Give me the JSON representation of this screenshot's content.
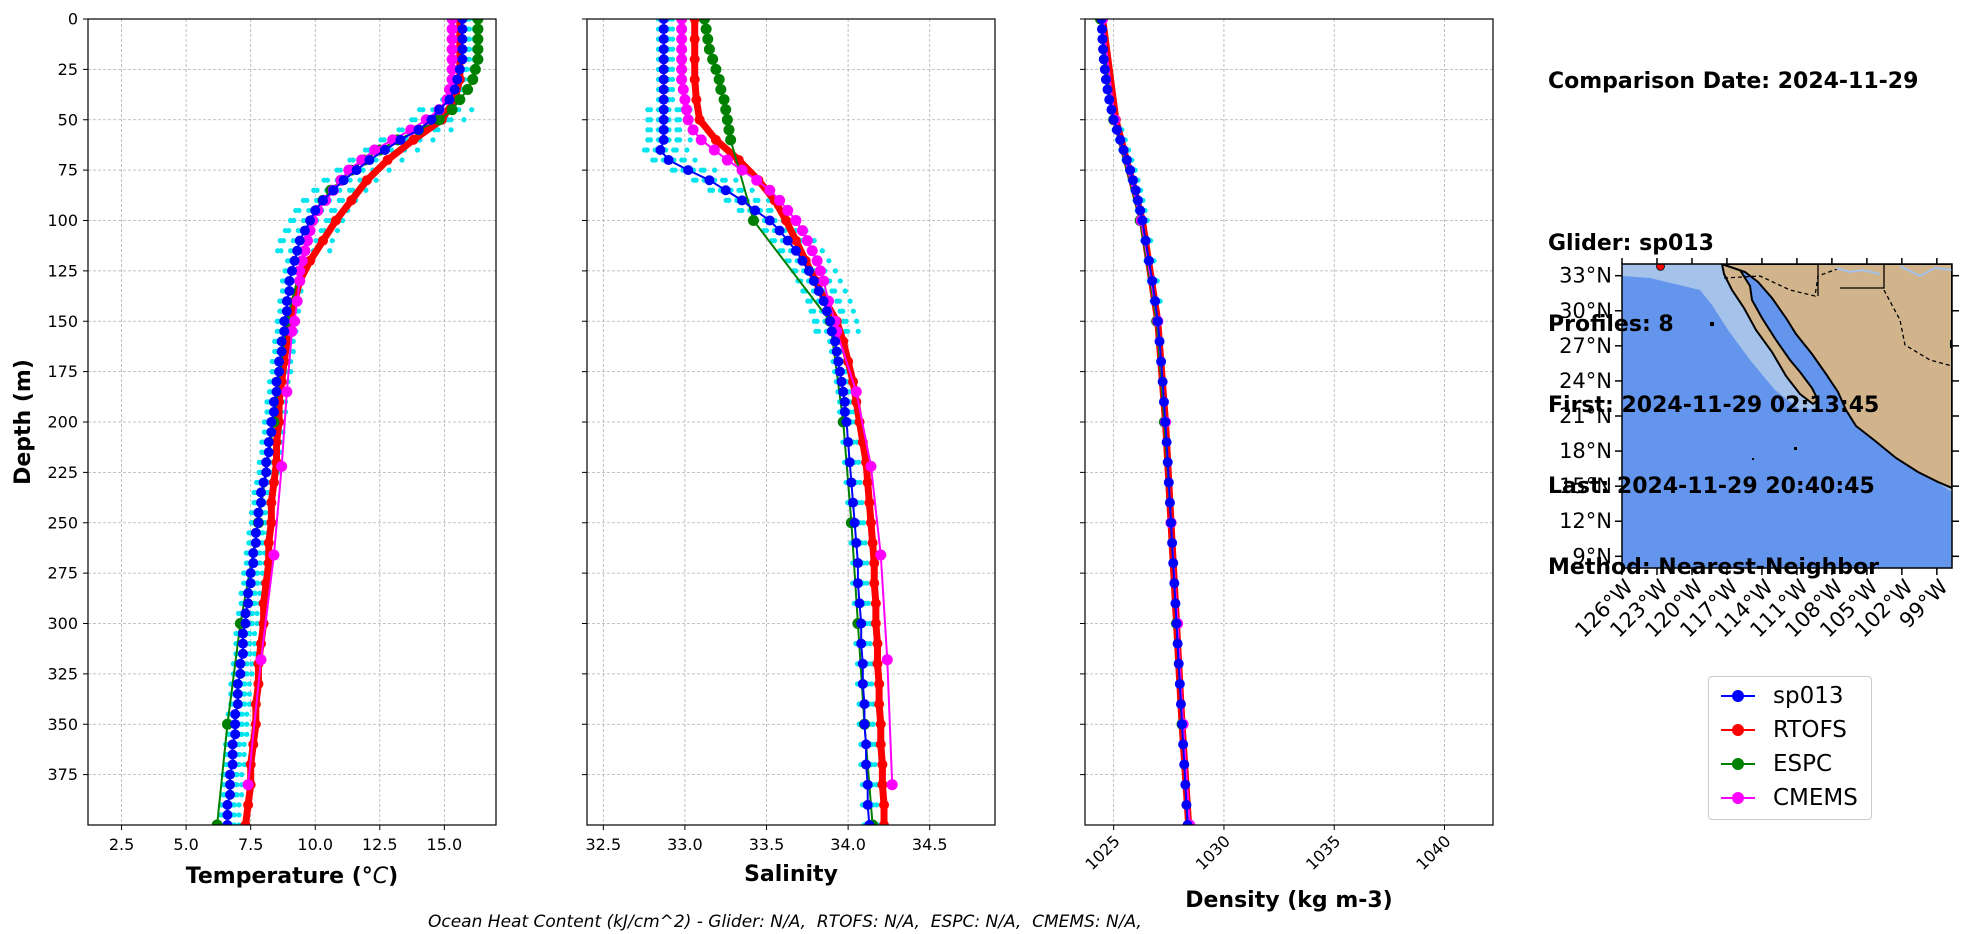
{
  "info": {
    "comparison_date": "Comparison Date: 2024-11-29",
    "glider": "Glider: sp013",
    "profiles": "Profiles: 8",
    "first": "First: 2024-11-29 02:13:45",
    "last": "Last: 2024-11-29 20:40:45",
    "method": "Method: Nearest-Neighbor"
  },
  "footer": "Ocean Heat Content (kJ/cm^2) - Glider: N/A,  RTOFS: N/A,  ESPC: N/A,  CMEMS: N/A,",
  "colors": {
    "sp013": "#0000ff",
    "RTOFS": "#ff0000",
    "ESPC": "#008000",
    "CMEMS": "#ff00ff",
    "profiles": "#00e5ee",
    "ocean": "#6495ed",
    "land": "#d2b48c",
    "shelf": "#a4c2ea"
  },
  "legend": [
    {
      "label": "sp013",
      "color": "#0000ff"
    },
    {
      "label": "RTOFS",
      "color": "#ff0000"
    },
    {
      "label": "ESPC",
      "color": "#008000"
    },
    {
      "label": "CMEMS",
      "color": "#ff00ff"
    }
  ],
  "chart_data": [
    {
      "type": "line",
      "xlabel": "Temperature (°C)",
      "ylabel": "Depth (m)",
      "xlim": [
        1.2,
        17.0
      ],
      "ylim": [
        400,
        0
      ],
      "xticks": [
        "2.5",
        "5.0",
        "7.5",
        "10.0",
        "12.5",
        "15.0"
      ],
      "yticks": [
        "0",
        "25",
        "50",
        "75",
        "100",
        "125",
        "150",
        "175",
        "200",
        "225",
        "250",
        "275",
        "300",
        "325",
        "350",
        "375"
      ],
      "grid": true,
      "series": [
        {
          "name": "sp013",
          "depth": [
            0,
            5,
            10,
            15,
            20,
            25,
            30,
            35,
            40,
            45,
            50,
            55,
            60,
            65,
            70,
            75,
            80,
            85,
            90,
            95,
            100,
            105,
            110,
            115,
            120,
            125,
            130,
            135,
            140,
            145,
            150,
            155,
            160,
            165,
            170,
            175,
            180,
            185,
            190,
            195,
            200,
            205,
            210,
            215,
            220,
            225,
            230,
            235,
            240,
            245,
            250,
            255,
            260,
            265,
            270,
            275,
            280,
            285,
            290,
            295,
            300,
            305,
            310,
            315,
            320,
            325,
            330,
            335,
            340,
            345,
            350,
            355,
            360,
            365,
            370,
            375,
            380,
            385,
            390,
            395,
            400
          ],
          "values": [
            15.7,
            15.7,
            15.7,
            15.7,
            15.7,
            15.6,
            15.5,
            15.4,
            15.2,
            14.8,
            14.5,
            14.0,
            13.3,
            12.7,
            12.1,
            11.6,
            11.1,
            10.7,
            10.3,
            10.0,
            9.8,
            9.6,
            9.4,
            9.3,
            9.2,
            9.1,
            9.0,
            9.0,
            8.9,
            8.9,
            8.8,
            8.8,
            8.7,
            8.7,
            8.6,
            8.6,
            8.5,
            8.5,
            8.4,
            8.4,
            8.3,
            8.3,
            8.2,
            8.2,
            8.1,
            8.1,
            8.0,
            7.9,
            7.9,
            7.8,
            7.8,
            7.7,
            7.7,
            7.6,
            7.6,
            7.5,
            7.5,
            7.4,
            7.4,
            7.3,
            7.3,
            7.2,
            7.2,
            7.2,
            7.1,
            7.1,
            7.0,
            7.0,
            7.0,
            6.9,
            6.9,
            6.9,
            6.8,
            6.8,
            6.8,
            6.7,
            6.7,
            6.7,
            6.6,
            6.6,
            6.6
          ]
        },
        {
          "name": "RTOFS",
          "depth": [
            0,
            10,
            20,
            30,
            40,
            50,
            60,
            70,
            80,
            90,
            100,
            110,
            120,
            130,
            140,
            150,
            160,
            170,
            180,
            190,
            200,
            210,
            220,
            230,
            240,
            250,
            260,
            270,
            280,
            290,
            300,
            310,
            320,
            330,
            340,
            350,
            360,
            370,
            380,
            390,
            400
          ],
          "values": [
            15.6,
            15.6,
            15.6,
            15.6,
            15.4,
            14.9,
            13.8,
            12.8,
            12.0,
            11.4,
            10.8,
            10.3,
            9.8,
            9.4,
            9.2,
            9.0,
            8.9,
            8.8,
            8.7,
            8.6,
            8.6,
            8.5,
            8.5,
            8.4,
            8.3,
            8.3,
            8.2,
            8.2,
            8.1,
            8.0,
            8.0,
            7.9,
            7.8,
            7.8,
            7.7,
            7.7,
            7.6,
            7.5,
            7.5,
            7.4,
            7.3
          ]
        },
        {
          "name": "ESPC",
          "depth": [
            0,
            5,
            10,
            15,
            20,
            25,
            30,
            35,
            40,
            45,
            50,
            55,
            60,
            65,
            70,
            75,
            80,
            85,
            90,
            95,
            100,
            150,
            200,
            250,
            300,
            350,
            400
          ],
          "values": [
            16.3,
            16.3,
            16.3,
            16.3,
            16.3,
            16.2,
            16.1,
            15.9,
            15.6,
            15.3,
            14.8,
            14.0,
            13.2,
            12.5,
            11.9,
            11.4,
            11.0,
            10.6,
            10.3,
            10.1,
            9.9,
            8.9,
            8.4,
            7.8,
            7.1,
            6.6,
            6.2
          ]
        },
        {
          "name": "CMEMS",
          "depth": [
            0,
            5,
            10,
            15,
            20,
            25,
            30,
            35,
            40,
            45,
            50,
            55,
            60,
            65,
            70,
            75,
            80,
            85,
            90,
            95,
            100,
            105,
            110,
            115,
            120,
            125,
            130,
            140,
            150,
            155,
            185,
            222,
            266,
            318,
            380
          ],
          "values": [
            15.3,
            15.3,
            15.3,
            15.3,
            15.3,
            15.3,
            15.3,
            15.2,
            15.1,
            14.8,
            14.3,
            13.7,
            13.0,
            12.3,
            11.8,
            11.3,
            11.0,
            10.7,
            10.4,
            10.1,
            9.9,
            9.8,
            9.7,
            9.6,
            9.5,
            9.4,
            9.4,
            9.3,
            9.2,
            9.1,
            8.9,
            8.7,
            8.4,
            7.9,
            7.4
          ]
        }
      ]
    },
    {
      "type": "line",
      "xlabel": "Salinity",
      "xlim": [
        32.4,
        34.9
      ],
      "ylim": [
        400,
        0
      ],
      "xticks": [
        "32.5",
        "33.0",
        "33.5",
        "34.0",
        "34.5"
      ],
      "grid": true,
      "series": [
        {
          "name": "sp013",
          "depth": [
            0,
            5,
            10,
            15,
            20,
            25,
            30,
            35,
            40,
            45,
            50,
            55,
            60,
            65,
            70,
            75,
            80,
            85,
            90,
            95,
            100,
            105,
            110,
            115,
            120,
            125,
            130,
            135,
            140,
            145,
            150,
            155,
            160,
            165,
            170,
            175,
            180,
            185,
            190,
            195,
            200,
            210,
            220,
            230,
            240,
            250,
            260,
            270,
            280,
            290,
            300,
            310,
            320,
            330,
            340,
            350,
            360,
            370,
            380,
            390,
            400
          ],
          "values": [
            32.87,
            32.87,
            32.87,
            32.87,
            32.87,
            32.87,
            32.87,
            32.87,
            32.87,
            32.87,
            32.87,
            32.87,
            32.87,
            32.85,
            32.9,
            33.02,
            33.15,
            33.25,
            33.35,
            33.43,
            33.52,
            33.58,
            33.63,
            33.68,
            33.72,
            33.76,
            33.79,
            33.82,
            33.85,
            33.87,
            33.89,
            33.9,
            33.92,
            33.93,
            33.94,
            33.95,
            33.96,
            33.97,
            33.98,
            33.98,
            33.99,
            34.0,
            34.01,
            34.02,
            34.03,
            34.04,
            34.05,
            34.06,
            34.06,
            34.07,
            34.08,
            34.08,
            34.09,
            34.09,
            34.1,
            34.1,
            34.11,
            34.11,
            34.12,
            34.12,
            34.13
          ]
        },
        {
          "name": "RTOFS",
          "depth": [
            0,
            10,
            20,
            30,
            40,
            50,
            60,
            70,
            80,
            90,
            100,
            110,
            120,
            130,
            140,
            150,
            160,
            170,
            180,
            190,
            200,
            210,
            220,
            230,
            240,
            250,
            260,
            270,
            280,
            290,
            300,
            310,
            320,
            330,
            340,
            350,
            360,
            370,
            380,
            390,
            400
          ],
          "values": [
            33.06,
            33.06,
            33.06,
            33.06,
            33.07,
            33.09,
            33.19,
            33.33,
            33.45,
            33.55,
            33.62,
            33.68,
            33.74,
            33.8,
            33.86,
            33.93,
            33.97,
            34.0,
            34.03,
            34.05,
            34.07,
            34.09,
            34.11,
            34.12,
            34.13,
            34.14,
            34.15,
            34.16,
            34.16,
            34.17,
            34.17,
            34.18,
            34.18,
            34.19,
            34.19,
            34.2,
            34.2,
            34.21,
            34.21,
            34.22,
            34.22
          ]
        },
        {
          "name": "ESPC",
          "depth": [
            0,
            5,
            10,
            15,
            20,
            25,
            30,
            35,
            40,
            45,
            50,
            55,
            60,
            100,
            150,
            200,
            250,
            300,
            350,
            400
          ],
          "values": [
            33.12,
            33.13,
            33.14,
            33.15,
            33.17,
            33.19,
            33.21,
            33.22,
            33.24,
            33.25,
            33.26,
            33.27,
            33.28,
            33.42,
            33.89,
            33.97,
            34.02,
            34.06,
            34.1,
            34.15
          ]
        },
        {
          "name": "CMEMS",
          "depth": [
            0,
            5,
            10,
            15,
            20,
            25,
            30,
            35,
            40,
            45,
            50,
            55,
            60,
            65,
            70,
            75,
            80,
            85,
            90,
            95,
            100,
            105,
            110,
            115,
            120,
            125,
            130,
            140,
            150,
            155,
            185,
            222,
            266,
            318,
            380
          ],
          "values": [
            32.98,
            32.98,
            32.98,
            32.98,
            32.98,
            32.98,
            32.98,
            32.99,
            33.0,
            33.01,
            33.02,
            33.05,
            33.1,
            33.18,
            33.26,
            33.35,
            33.44,
            33.52,
            33.58,
            33.63,
            33.68,
            33.72,
            33.75,
            33.78,
            33.81,
            33.83,
            33.85,
            33.88,
            33.92,
            33.93,
            34.05,
            34.14,
            34.2,
            34.24,
            34.27
          ]
        }
      ]
    },
    {
      "type": "line",
      "xlabel": "Density (kg m-3)",
      "xlim": [
        1023.7,
        1042.2
      ],
      "ylim": [
        400,
        0
      ],
      "xticks": [
        "1025",
        "1030",
        "1035",
        "1040"
      ],
      "grid": true,
      "series": [
        {
          "name": "sp013",
          "depth": [
            0,
            5,
            10,
            15,
            20,
            25,
            30,
            35,
            40,
            45,
            50,
            55,
            60,
            65,
            70,
            75,
            80,
            85,
            90,
            95,
            100,
            110,
            120,
            130,
            140,
            150,
            160,
            170,
            180,
            190,
            200,
            210,
            220,
            230,
            240,
            250,
            260,
            270,
            280,
            290,
            300,
            310,
            320,
            330,
            340,
            350,
            360,
            370,
            380,
            390,
            400
          ],
          "values": [
            1024.45,
            1024.47,
            1024.49,
            1024.52,
            1024.55,
            1024.6,
            1024.65,
            1024.72,
            1024.8,
            1024.9,
            1025.0,
            1025.15,
            1025.3,
            1025.45,
            1025.6,
            1025.75,
            1025.88,
            1026.0,
            1026.1,
            1026.2,
            1026.3,
            1026.45,
            1026.6,
            1026.75,
            1026.88,
            1027.0,
            1027.08,
            1027.15,
            1027.22,
            1027.28,
            1027.34,
            1027.4,
            1027.45,
            1027.5,
            1027.55,
            1027.6,
            1027.65,
            1027.7,
            1027.75,
            1027.8,
            1027.85,
            1027.9,
            1027.95,
            1028.0,
            1028.05,
            1028.1,
            1028.15,
            1028.2,
            1028.25,
            1028.3,
            1028.35
          ]
        },
        {
          "name": "RTOFS",
          "depth": [
            0,
            50,
            100,
            150,
            200,
            250,
            300,
            350,
            400
          ],
          "values": [
            1024.5,
            1025.1,
            1026.3,
            1027.0,
            1027.35,
            1027.6,
            1027.85,
            1028.1,
            1028.4
          ]
        },
        {
          "name": "ESPC",
          "depth": [
            0,
            50,
            100,
            150,
            200,
            250,
            300,
            350,
            400
          ],
          "values": [
            1024.4,
            1025.0,
            1026.2,
            1026.95,
            1027.3,
            1027.6,
            1027.85,
            1028.1,
            1028.4
          ]
        },
        {
          "name": "CMEMS",
          "depth": [
            0,
            50,
            100,
            150,
            200,
            250,
            300,
            350,
            400
          ],
          "values": [
            1024.5,
            1025.05,
            1026.25,
            1027.0,
            1027.35,
            1027.6,
            1027.9,
            1028.15,
            1028.45
          ]
        }
      ]
    }
  ],
  "map": {
    "lat_ticks": [
      "33°N",
      "30°N",
      "27°N",
      "24°N",
      "21°N",
      "18°N",
      "15°N",
      "12°N",
      "9°N"
    ],
    "lon_ticks": [
      "126°W",
      "123°W",
      "120°W",
      "117°W",
      "114°W",
      "111°W",
      "108°W",
      "105°W",
      "102°W",
      "99°W"
    ],
    "lat_values": [
      33,
      30,
      27,
      24,
      21,
      18,
      15,
      12,
      9
    ],
    "lon_values": [
      -126,
      -123,
      -120,
      -117,
      -114,
      -111,
      -108,
      -105,
      -102,
      -99
    ],
    "extent": {
      "lon_min": -126.0,
      "lon_max": -97.7,
      "lat_min": 8.0,
      "lat_max": 34.0
    },
    "glider_position": {
      "lon": -122.7,
      "lat": 33.8
    }
  }
}
